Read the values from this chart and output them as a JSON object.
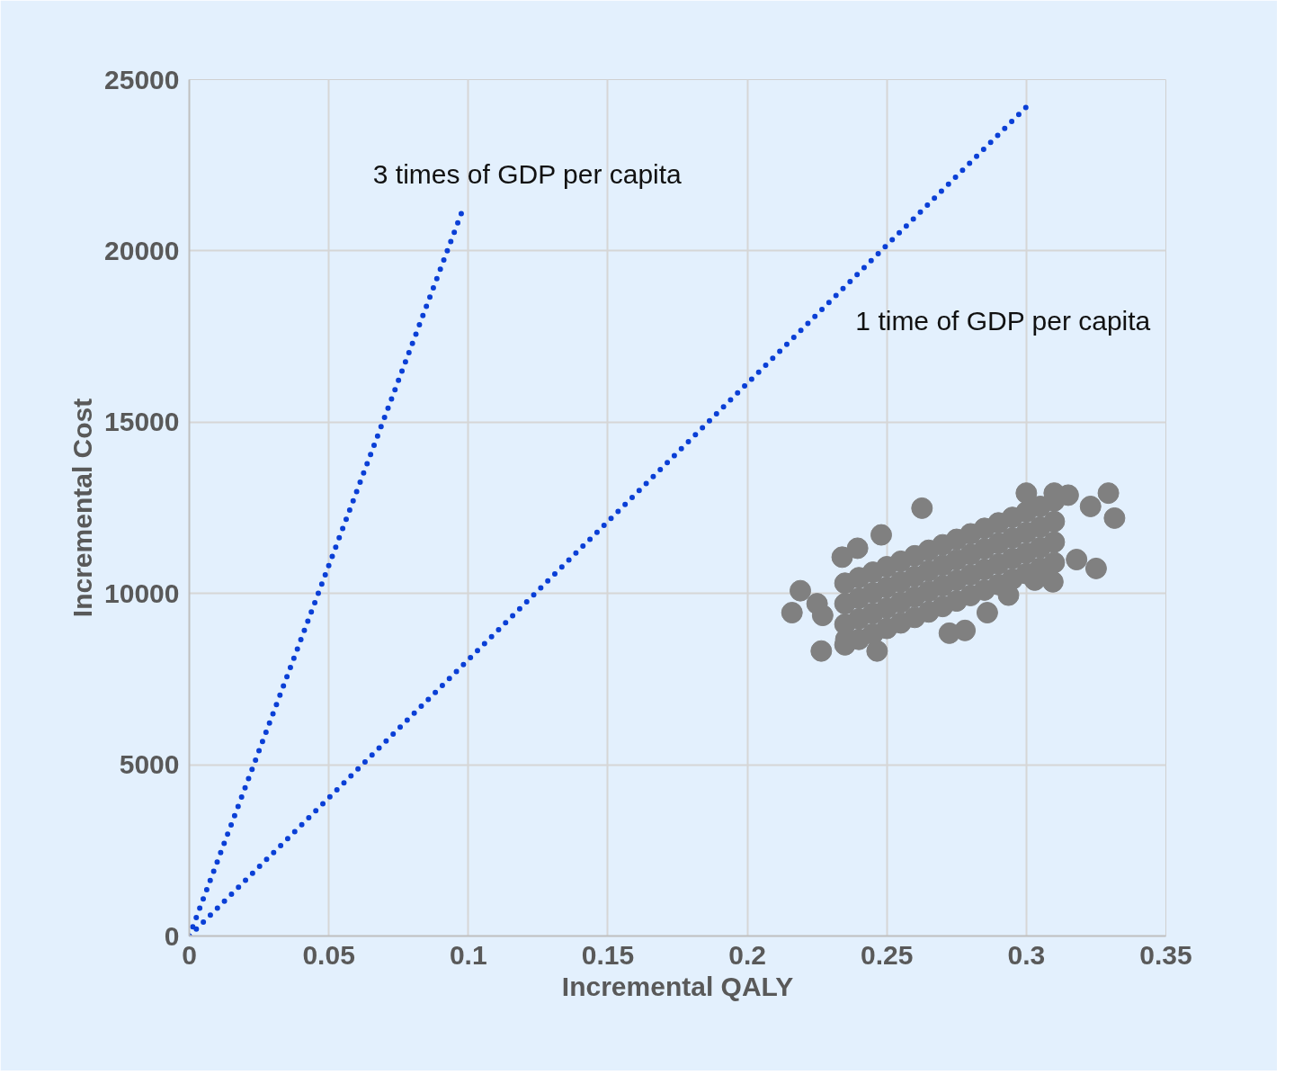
{
  "chart_data": {
    "type": "scatter",
    "xlabel": "Incremental QALY",
    "ylabel": "Incremental Cost",
    "xlim": [
      0,
      0.35
    ],
    "xticks": [
      0,
      0.05,
      0.1,
      0.15,
      0.2,
      0.25,
      0.3,
      0.35
    ],
    "ylim": [
      0,
      25000
    ],
    "yticks": [
      0,
      5000,
      10000,
      15000,
      20000,
      25000
    ],
    "grid": true,
    "series": [
      {
        "type": "line",
        "color": "#0a3fd6",
        "line_style": "dotted",
        "marker": "none",
        "x": [
          0,
          0.098
        ],
        "values": [
          0,
          21200
        ]
      },
      {
        "type": "line",
        "color": "#0a3fd6",
        "line_style": "dotted",
        "marker": "none",
        "x": [
          0,
          0.3
        ],
        "values": [
          0,
          24200
        ]
      },
      {
        "color": "#808080",
        "marker": "circle",
        "x": [
          0.216,
          0.219,
          0.2265,
          0.234,
          0.2395,
          0.248,
          0.2626,
          0.2465,
          0.225,
          0.3294,
          0.3316,
          0.325,
          0.3,
          0.315,
          0.31,
          0.323,
          0.3095,
          0.303,
          0.318,
          0.278,
          0.2724,
          0.2353,
          0.227,
          0.286,
          0.2936,
          0.235,
          0.235,
          0.235,
          0.235,
          0.24,
          0.24,
          0.24,
          0.24,
          0.245,
          0.245,
          0.245,
          0.245,
          0.25,
          0.25,
          0.25,
          0.25,
          0.255,
          0.255,
          0.255,
          0.255,
          0.26,
          0.26,
          0.26,
          0.26,
          0.265,
          0.265,
          0.265,
          0.265,
          0.27,
          0.27,
          0.27,
          0.27,
          0.275,
          0.275,
          0.275,
          0.275,
          0.28,
          0.28,
          0.28,
          0.28,
          0.285,
          0.285,
          0.285,
          0.285,
          0.29,
          0.29,
          0.29,
          0.29,
          0.295,
          0.295,
          0.295,
          0.295,
          0.3,
          0.3,
          0.3,
          0.3,
          0.305,
          0.305,
          0.305,
          0.305,
          0.31,
          0.31,
          0.31,
          0.31
        ],
        "values": [
          9440,
          10080,
          8320,
          11060,
          11320,
          11710,
          12490,
          8320,
          9700,
          12930,
          12200,
          10730,
          12930,
          12870,
          12930,
          12540,
          10340,
          10390,
          10990,
          8920,
          8840,
          8660,
          9360,
          9440,
          9950,
          8500,
          9100,
          9700,
          10300,
          8660,
          9260,
          9860,
          10460,
          8820,
          9420,
          10020,
          10620,
          8980,
          9580,
          10180,
          10780,
          9140,
          9740,
          10340,
          10940,
          9300,
          9900,
          10500,
          11100,
          9460,
          10060,
          10660,
          11260,
          9620,
          10220,
          10820,
          11420,
          9780,
          10380,
          10980,
          11580,
          9940,
          10540,
          11140,
          11740,
          10100,
          10700,
          11300,
          11900,
          10260,
          10860,
          11460,
          12060,
          10420,
          11020,
          11620,
          12220,
          10580,
          11180,
          11780,
          12380,
          10740,
          11340,
          11940,
          12540,
          10900,
          11500,
          12100,
          12700
        ]
      }
    ],
    "annotations": [
      "3 times of GDP per capita",
      "1 time of GDP per capita"
    ]
  }
}
